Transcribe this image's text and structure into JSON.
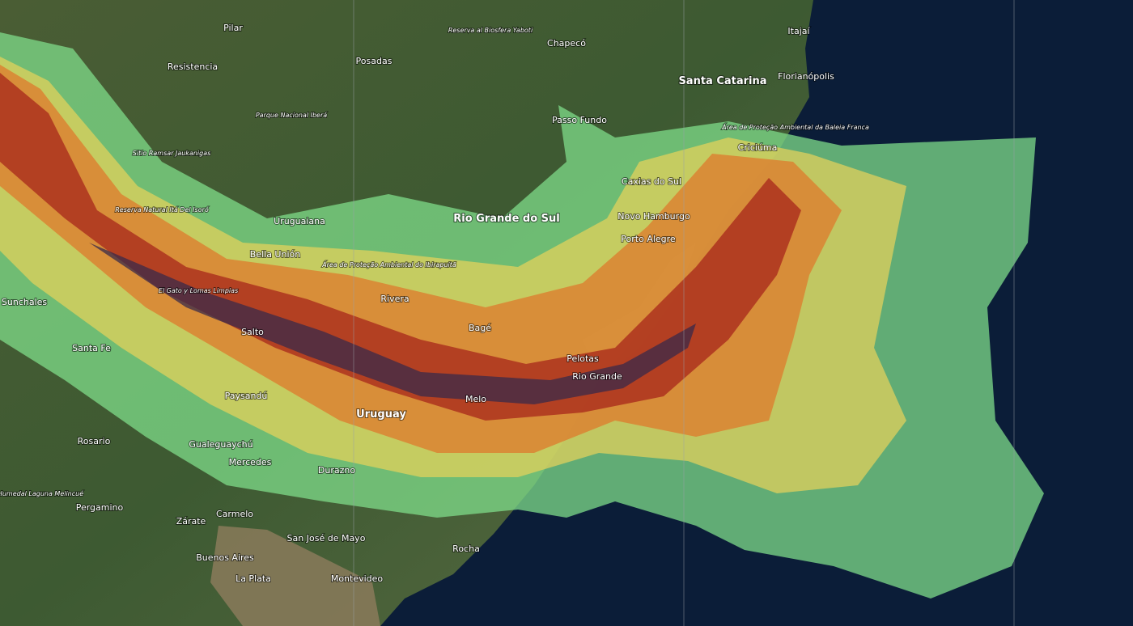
{
  "map": {
    "labels": [
      "Pilar",
      "Reserva al Biosfera Yaboti",
      "Chapecó",
      "Itajaí",
      "Posadas",
      "Resistencia",
      "Santa Catarina",
      "Florianópolis",
      "Parque Nacional Iberá",
      "Passo Fundo",
      "Área de Proteção Ambiental da Baleia Franca",
      "Criciúma",
      "Sitio Ramsar Jaukanigas",
      "Caxias do Sul",
      "Reserva Natural Itá Del Isoró",
      "Rio Grande do Sul",
      "Uruguaiana",
      "Novo Hamburgo",
      "Porto Alegre",
      "Bella Unión",
      "Área de Proteção Ambiental do Ibirapuitã",
      "El Gato y Lomas Limpias",
      "Sunchales",
      "Rivera",
      "Bagé",
      "Salto",
      "Santa Fe",
      "Pelotas",
      "Rio Grande",
      "Paysandú",
      "Melo",
      "Uruguay",
      "Rosario",
      "Gualeguaychú",
      "Mercedes",
      "Durazno",
      "Humedal Laguna Melincué",
      "Pergamino",
      "Carmelo",
      "Zárate",
      "San José de Mayo",
      "Rocha",
      "Buenos Aires",
      "La Plata",
      "Montevideo"
    ]
  }
}
